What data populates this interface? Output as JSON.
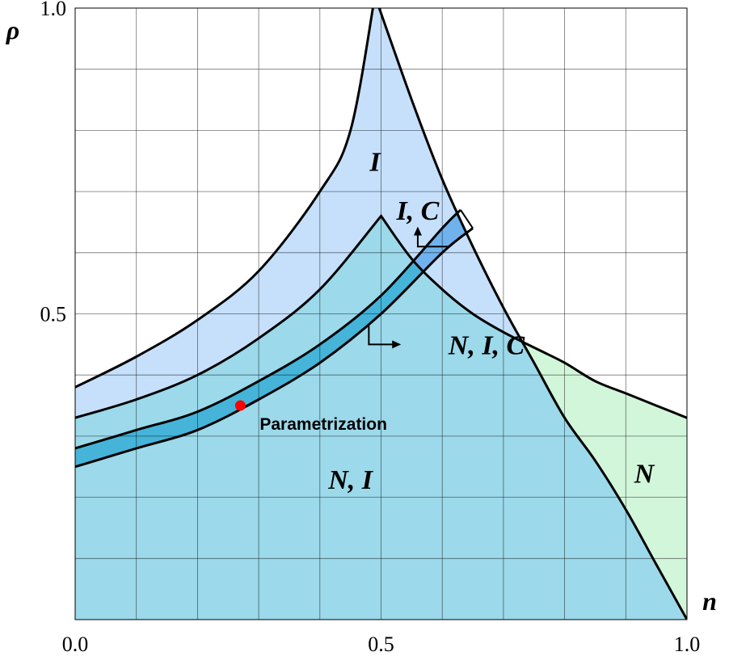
{
  "chart_data": {
    "type": "area",
    "xlabel": "n",
    "ylabel": "ρ",
    "xlim": [
      0.0,
      1.0
    ],
    "ylim": [
      0.0,
      1.0
    ],
    "grid": true,
    "x_ticks": [
      "0.0",
      "0.5",
      "1.0"
    ],
    "y_ticks": [
      "0.5",
      "1.0"
    ],
    "grid_divisions": 10,
    "regions": [
      {
        "label": "I",
        "color": "#c6e0fb",
        "x": 0.49,
        "y": 0.75
      },
      {
        "label": "I, C",
        "color": "#6fb2ee",
        "x": 0.56,
        "y": 0.67
      },
      {
        "label": "N, I, C",
        "color": "#45b4d8",
        "x": 0.61,
        "y": 0.45
      },
      {
        "label": "N, I",
        "color": "#9cd9ea",
        "x": 0.45,
        "y": 0.23
      },
      {
        "label": "N",
        "color": "#d2f6da",
        "x": 0.93,
        "y": 0.24
      }
    ],
    "curves": {
      "I_boundary": {
        "x": [
          0.0,
          0.1,
          0.2,
          0.3,
          0.4,
          0.45,
          0.49,
          0.55,
          0.6,
          0.65,
          0.7,
          0.75,
          0.8,
          0.85,
          0.9,
          0.95,
          1.0
        ],
        "y": [
          0.38,
          0.43,
          0.49,
          0.57,
          0.7,
          0.8,
          1.02,
          0.85,
          0.72,
          0.61,
          0.51,
          0.42,
          0.33,
          0.26,
          0.18,
          0.09,
          0.0
        ]
      },
      "N_boundary": {
        "x": [
          0.0,
          0.1,
          0.2,
          0.3,
          0.4,
          0.5,
          0.55,
          0.6,
          0.65,
          0.7,
          0.76,
          0.8,
          0.85,
          0.9,
          0.95,
          1.0
        ],
        "y": [
          0.33,
          0.36,
          0.4,
          0.46,
          0.54,
          0.66,
          0.59,
          0.54,
          0.5,
          0.47,
          0.44,
          0.42,
          0.39,
          0.37,
          0.35,
          0.33
        ]
      },
      "C_upper": {
        "x": [
          0.0,
          0.1,
          0.2,
          0.3,
          0.4,
          0.5,
          0.6,
          0.63
        ],
        "y": [
          0.28,
          0.31,
          0.34,
          0.39,
          0.45,
          0.53,
          0.64,
          0.67
        ]
      },
      "C_lower": {
        "x": [
          0.0,
          0.1,
          0.2,
          0.3,
          0.4,
          0.5,
          0.6,
          0.65
        ],
        "y": [
          0.25,
          0.28,
          0.31,
          0.36,
          0.42,
          0.5,
          0.6,
          0.64
        ]
      }
    },
    "point": {
      "label": "Parametrization",
      "x": 0.27,
      "y": 0.35,
      "color": "#ff0000"
    },
    "annotation_arrows": [
      {
        "target": "I, C",
        "from": [
          0.61,
          0.61
        ],
        "corner": [
          0.56,
          0.61
        ],
        "to": [
          0.56,
          0.64
        ]
      },
      {
        "target": "N, I, C",
        "from": [
          0.48,
          0.48
        ],
        "corner": [
          0.48,
          0.45
        ],
        "to": [
          0.53,
          0.45
        ]
      }
    ]
  }
}
